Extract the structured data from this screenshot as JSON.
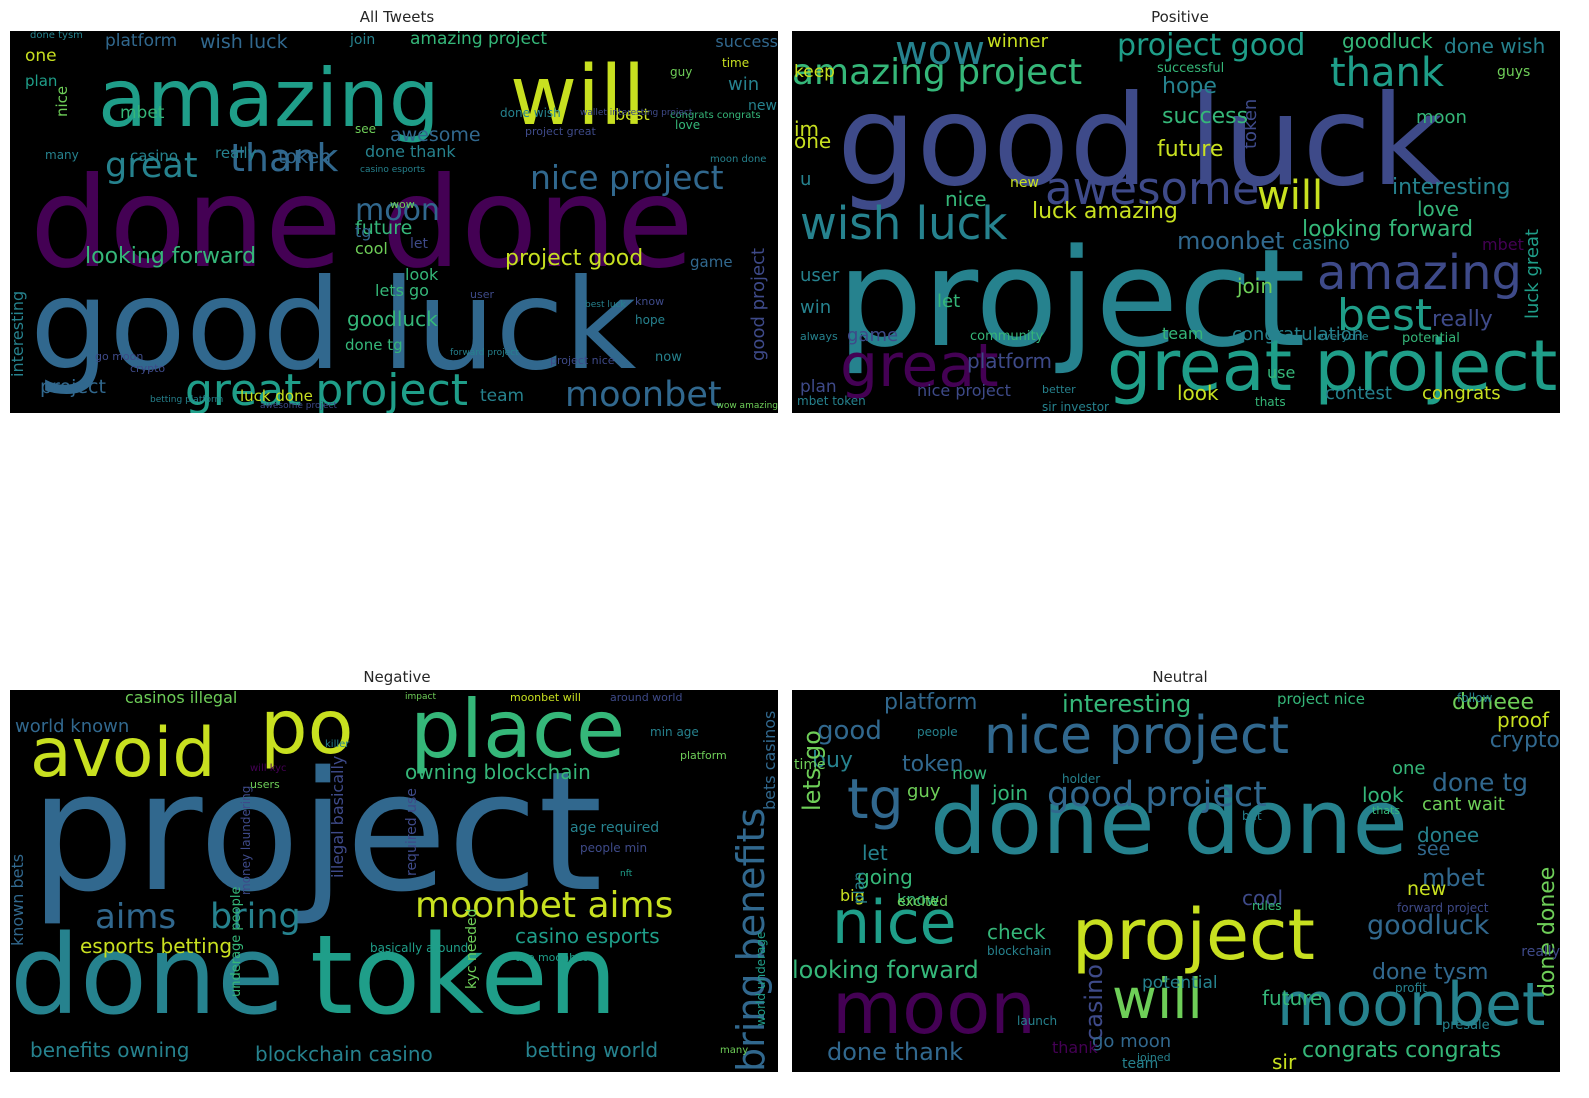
{
  "palette": {
    "purple": "#440154",
    "indigo": "#3e4a89",
    "blue": "#31688e",
    "teal": "#26828e",
    "green": "#1f9e89",
    "lightgreen": "#35b779",
    "lime": "#6ece58",
    "yellow": "#c8e020"
  },
  "panels": [
    {
      "title": "All Tweets",
      "words": [
        {
          "t": "amazing",
          "c": "green"
        },
        {
          "t": "will",
          "c": "yellow"
        },
        {
          "t": "done done",
          "c": "purple"
        },
        {
          "t": "good luck",
          "c": "blue"
        },
        {
          "t": "great project",
          "c": "green"
        },
        {
          "t": "moonbet",
          "c": "blue"
        },
        {
          "t": "thank",
          "c": "blue"
        },
        {
          "t": "great",
          "c": "teal"
        },
        {
          "t": "nice project",
          "c": "blue"
        },
        {
          "t": "moon",
          "c": "blue"
        },
        {
          "t": "looking forward",
          "c": "lightgreen"
        },
        {
          "t": "project good",
          "c": "yellow"
        },
        {
          "t": "goodluck",
          "c": "lightgreen"
        },
        {
          "t": "amazing project",
          "c": "lightgreen"
        },
        {
          "t": "wish luck",
          "c": "blue"
        },
        {
          "t": "platform",
          "c": "blue"
        },
        {
          "t": "awesome",
          "c": "blue"
        },
        {
          "t": "token",
          "c": "blue"
        },
        {
          "t": "done thank",
          "c": "teal"
        },
        {
          "t": "project",
          "c": "blue"
        },
        {
          "t": "interesting",
          "c": "teal"
        },
        {
          "t": "future",
          "c": "lightgreen"
        },
        {
          "t": "lets go",
          "c": "lightgreen"
        },
        {
          "t": "cool",
          "c": "lime"
        },
        {
          "t": "success",
          "c": "blue"
        },
        {
          "t": "win",
          "c": "teal"
        },
        {
          "t": "one",
          "c": "yellow"
        },
        {
          "t": "plan",
          "c": "green"
        },
        {
          "t": "mbet",
          "c": "lightgreen"
        },
        {
          "t": "casino",
          "c": "teal"
        },
        {
          "t": "really",
          "c": "teal"
        },
        {
          "t": "best",
          "c": "yellow"
        },
        {
          "t": "new",
          "c": "teal"
        },
        {
          "t": "nice",
          "c": "lime"
        },
        {
          "t": "look",
          "c": "lightgreen"
        },
        {
          "t": "let",
          "c": "indigo"
        },
        {
          "t": "tg",
          "c": "blue"
        },
        {
          "t": "game",
          "c": "blue"
        },
        {
          "t": "done tg",
          "c": "lightgreen"
        },
        {
          "t": "luck done",
          "c": "yellow"
        },
        {
          "t": "team",
          "c": "teal"
        },
        {
          "t": "good project",
          "c": "indigo"
        },
        {
          "t": "hope",
          "c": "teal"
        },
        {
          "t": "see",
          "c": "lime"
        },
        {
          "t": "join",
          "c": "teal"
        },
        {
          "t": "love",
          "c": "lightgreen"
        },
        {
          "t": "time",
          "c": "yellow"
        },
        {
          "t": "guy",
          "c": "lime"
        },
        {
          "t": "many",
          "c": "teal"
        },
        {
          "t": "done tysm",
          "c": "teal"
        },
        {
          "t": "user",
          "c": "indigo"
        },
        {
          "t": "go moon",
          "c": "indigo"
        },
        {
          "t": "crypto",
          "c": "indigo"
        },
        {
          "t": "know",
          "c": "indigo"
        },
        {
          "t": "now",
          "c": "teal"
        },
        {
          "t": "wow",
          "c": "lime"
        },
        {
          "t": "done wish",
          "c": "teal"
        },
        {
          "t": "project nice",
          "c": "indigo"
        },
        {
          "t": "moon done",
          "c": "teal"
        },
        {
          "t": "project great",
          "c": "indigo"
        },
        {
          "t": "congrats congrats",
          "c": "lightgreen"
        },
        {
          "t": "wallet interesting project",
          "c": "indigo"
        },
        {
          "t": "casino esports",
          "c": "teal"
        },
        {
          "t": "betting platform",
          "c": "teal"
        },
        {
          "t": "awesome project",
          "c": "indigo"
        },
        {
          "t": "forward project",
          "c": "teal"
        },
        {
          "t": "best luck",
          "c": "teal"
        },
        {
          "t": "wow amazing",
          "c": "lime"
        }
      ]
    },
    {
      "title": "Positive",
      "words": [
        {
          "t": "good luck",
          "c": "indigo"
        },
        {
          "t": "project",
          "c": "teal"
        },
        {
          "t": "great project",
          "c": "green"
        },
        {
          "t": "great",
          "c": "purple"
        },
        {
          "t": "amazing project",
          "c": "lightgreen"
        },
        {
          "t": "wow",
          "c": "teal"
        },
        {
          "t": "project good",
          "c": "green"
        },
        {
          "t": "thank",
          "c": "green"
        },
        {
          "t": "awesome",
          "c": "indigo"
        },
        {
          "t": "will",
          "c": "yellow"
        },
        {
          "t": "wish luck",
          "c": "teal"
        },
        {
          "t": "amazing",
          "c": "indigo"
        },
        {
          "t": "best",
          "c": "green"
        },
        {
          "t": "luck amazing",
          "c": "yellow"
        },
        {
          "t": "moonbet",
          "c": "blue"
        },
        {
          "t": "interesting",
          "c": "teal"
        },
        {
          "t": "looking forward",
          "c": "lightgreen"
        },
        {
          "t": "success",
          "c": "lightgreen"
        },
        {
          "t": "future",
          "c": "yellow"
        },
        {
          "t": "hope",
          "c": "teal"
        },
        {
          "t": "goodluck",
          "c": "lightgreen"
        },
        {
          "t": "winner",
          "c": "yellow"
        },
        {
          "t": "done wish",
          "c": "teal"
        },
        {
          "t": "keep",
          "c": "yellow"
        },
        {
          "t": "one",
          "c": "yellow"
        },
        {
          "t": "nice",
          "c": "lightgreen"
        },
        {
          "t": "im",
          "c": "yellow"
        },
        {
          "t": "u",
          "c": "teal"
        },
        {
          "t": "user",
          "c": "teal"
        },
        {
          "t": "win",
          "c": "teal"
        },
        {
          "t": "moon",
          "c": "lightgreen"
        },
        {
          "t": "love",
          "c": "lightgreen"
        },
        {
          "t": "casino",
          "c": "teal"
        },
        {
          "t": "really",
          "c": "indigo"
        },
        {
          "t": "join",
          "c": "lime"
        },
        {
          "t": "let",
          "c": "lightgreen"
        },
        {
          "t": "team",
          "c": "lightgreen"
        },
        {
          "t": "congratulation",
          "c": "teal"
        },
        {
          "t": "platform",
          "c": "indigo"
        },
        {
          "t": "nice project",
          "c": "indigo"
        },
        {
          "t": "contest",
          "c": "teal"
        },
        {
          "t": "congrats",
          "c": "yellow"
        },
        {
          "t": "look",
          "c": "yellow"
        },
        {
          "t": "use",
          "c": "lightgreen"
        },
        {
          "t": "game",
          "c": "indigo"
        },
        {
          "t": "plan",
          "c": "indigo"
        },
        {
          "t": "mbet",
          "c": "purple"
        },
        {
          "t": "potential",
          "c": "lightgreen"
        },
        {
          "t": "token",
          "c": "indigo"
        },
        {
          "t": "luck great",
          "c": "green"
        },
        {
          "t": "new",
          "c": "yellow"
        },
        {
          "t": "successful",
          "c": "lightgreen"
        },
        {
          "t": "guys",
          "c": "lime"
        },
        {
          "t": "community",
          "c": "lightgreen"
        },
        {
          "t": "mbet token",
          "c": "teal"
        },
        {
          "t": "sir investor",
          "c": "teal"
        },
        {
          "t": "thats",
          "c": "lightgreen"
        },
        {
          "t": "always",
          "c": "teal"
        },
        {
          "t": "everyone",
          "c": "teal"
        },
        {
          "t": "better",
          "c": "teal"
        }
      ]
    },
    {
      "title": "Negative",
      "words": [
        {
          "t": "project",
          "c": "blue"
        },
        {
          "t": "done",
          "c": "teal"
        },
        {
          "t": "token",
          "c": "green"
        },
        {
          "t": "place",
          "c": "lightgreen"
        },
        {
          "t": "avoid",
          "c": "yellow"
        },
        {
          "t": "po",
          "c": "yellow"
        },
        {
          "t": "moonbet aims",
          "c": "yellow"
        },
        {
          "t": "aims",
          "c": "blue"
        },
        {
          "t": "bring",
          "c": "teal"
        },
        {
          "t": "bring benefits",
          "c": "blue"
        },
        {
          "t": "owning blockchain",
          "c": "lightgreen"
        },
        {
          "t": "casino esports",
          "c": "green"
        },
        {
          "t": "esports betting",
          "c": "yellow"
        },
        {
          "t": "benefits owning",
          "c": "teal"
        },
        {
          "t": "blockchain casino",
          "c": "teal"
        },
        {
          "t": "betting world",
          "c": "teal"
        },
        {
          "t": "world known",
          "c": "blue"
        },
        {
          "t": "known bets",
          "c": "blue"
        },
        {
          "t": "casinos illegal",
          "c": "lime"
        },
        {
          "t": "bets casinos",
          "c": "blue"
        },
        {
          "t": "underage people",
          "c": "lightgreen"
        },
        {
          "t": "illegal basically",
          "c": "indigo"
        },
        {
          "t": "age required",
          "c": "teal"
        },
        {
          "t": "people min",
          "c": "indigo"
        },
        {
          "t": "required use",
          "c": "indigo"
        },
        {
          "t": "moonbet will",
          "c": "yellow"
        },
        {
          "t": "around world",
          "c": "indigo"
        },
        {
          "t": "kyc needed",
          "c": "lime"
        },
        {
          "t": "min age",
          "c": "teal"
        },
        {
          "t": "basically around",
          "c": "green"
        },
        {
          "t": "use moonbet",
          "c": "green"
        },
        {
          "t": "world underage",
          "c": "green"
        },
        {
          "t": "money laundering",
          "c": "indigo"
        },
        {
          "t": "platform",
          "c": "lime"
        },
        {
          "t": "users",
          "c": "lime"
        },
        {
          "t": "killer",
          "c": "teal"
        },
        {
          "t": "impact",
          "c": "lime"
        },
        {
          "t": "nft",
          "c": "green"
        },
        {
          "t": "many",
          "c": "lime"
        },
        {
          "t": "will kyc",
          "c": "purple"
        }
      ]
    },
    {
      "title": "Neutral",
      "words": [
        {
          "t": "done done",
          "c": "teal"
        },
        {
          "t": "nice project",
          "c": "blue"
        },
        {
          "t": "project",
          "c": "yellow"
        },
        {
          "t": "moon",
          "c": "purple"
        },
        {
          "t": "moonbet",
          "c": "teal"
        },
        {
          "t": "will",
          "c": "lime"
        },
        {
          "t": "nice",
          "c": "green"
        },
        {
          "t": "tg",
          "c": "blue"
        },
        {
          "t": "good project",
          "c": "blue"
        },
        {
          "t": "interesting",
          "c": "lightgreen"
        },
        {
          "t": "platform",
          "c": "blue"
        },
        {
          "t": "token",
          "c": "blue"
        },
        {
          "t": "good",
          "c": "blue"
        },
        {
          "t": "buy",
          "c": "teal"
        },
        {
          "t": "crypto",
          "c": "blue"
        },
        {
          "t": "proof",
          "c": "yellow"
        },
        {
          "t": "doneee",
          "c": "lime"
        },
        {
          "t": "done tg",
          "c": "blue"
        },
        {
          "t": "cant wait",
          "c": "lime"
        },
        {
          "t": "looking forward",
          "c": "lightgreen"
        },
        {
          "t": "lets go",
          "c": "lime"
        },
        {
          "t": "done thank",
          "c": "blue"
        },
        {
          "t": "goodluck",
          "c": "blue"
        },
        {
          "t": "done tysm",
          "c": "blue"
        },
        {
          "t": "congrats congrats",
          "c": "lightgreen"
        },
        {
          "t": "casino",
          "c": "indigo"
        },
        {
          "t": "check",
          "c": "lightgreen"
        },
        {
          "t": "let",
          "c": "teal"
        },
        {
          "t": "going",
          "c": "lightgreen"
        },
        {
          "t": "mbet",
          "c": "blue"
        },
        {
          "t": "new",
          "c": "yellow"
        },
        {
          "t": "cool",
          "c": "indigo"
        },
        {
          "t": "look",
          "c": "lightgreen"
        },
        {
          "t": "one",
          "c": "lightgreen"
        },
        {
          "t": "join",
          "c": "lightgreen"
        },
        {
          "t": "guy",
          "c": "lime"
        },
        {
          "t": "now",
          "c": "lightgreen"
        },
        {
          "t": "time",
          "c": "lime"
        },
        {
          "t": "big",
          "c": "yellow"
        },
        {
          "t": "donee",
          "c": "teal"
        },
        {
          "t": "see",
          "c": "blue"
        },
        {
          "t": "future",
          "c": "lightgreen"
        },
        {
          "t": "sir",
          "c": "yellow"
        },
        {
          "t": "go moon",
          "c": "blue"
        },
        {
          "t": "project nice",
          "c": "lightgreen"
        },
        {
          "t": "done donee",
          "c": "lime"
        },
        {
          "t": "thank",
          "c": "purple"
        },
        {
          "t": "plan",
          "c": "teal"
        },
        {
          "t": "follow",
          "c": "teal"
        },
        {
          "t": "potential",
          "c": "teal"
        },
        {
          "t": "know",
          "c": "lightgreen"
        },
        {
          "t": "presale",
          "c": "teal"
        },
        {
          "t": "launch",
          "c": "teal"
        },
        {
          "t": "team",
          "c": "teal"
        },
        {
          "t": "excited",
          "c": "lime"
        },
        {
          "t": "rules",
          "c": "lightgreen"
        },
        {
          "t": "really",
          "c": "indigo"
        },
        {
          "t": "people",
          "c": "teal"
        },
        {
          "t": "blockchain",
          "c": "teal"
        },
        {
          "t": "joined",
          "c": "teal"
        },
        {
          "t": "profit",
          "c": "teal"
        },
        {
          "t": "holder",
          "c": "teal"
        },
        {
          "t": "thats",
          "c": "lightgreen"
        },
        {
          "t": "bet",
          "c": "teal"
        },
        {
          "t": "forward project",
          "c": "indigo"
        }
      ]
    }
  ]
}
